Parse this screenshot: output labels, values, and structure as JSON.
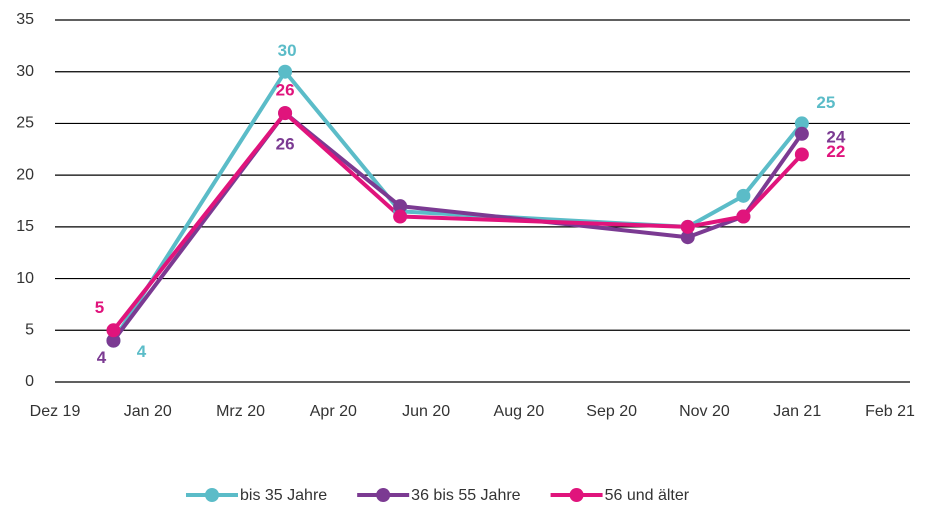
{
  "chart_data": {
    "type": "line",
    "x": [
      0.63,
      2.48,
      3.72,
      6.82,
      7.42,
      8.05
    ],
    "xlim": [
      0,
      9
    ],
    "xticks": [
      {
        "value": 0,
        "label": "Dez 19"
      },
      {
        "value": 1,
        "label": "Jan 20"
      },
      {
        "value": 2,
        "label": "Mrz 20"
      },
      {
        "value": 3,
        "label": "Apr 20"
      },
      {
        "value": 4,
        "label": "Jun 20"
      },
      {
        "value": 5,
        "label": "Aug 20"
      },
      {
        "value": 6,
        "label": "Sep 20"
      },
      {
        "value": 7,
        "label": "Nov 20"
      },
      {
        "value": 8,
        "label": "Jan 21"
      },
      {
        "value": 9,
        "label": "Feb 21"
      }
    ],
    "ylim": [
      0,
      35
    ],
    "yticks": [
      0,
      5,
      10,
      15,
      20,
      25,
      30,
      35
    ],
    "grid": true,
    "legend": "bottom",
    "series": [
      {
        "name": "bis 35 Jahre",
        "color": "#5bbcc8",
        "values": [
          4,
          30,
          16.5,
          15,
          18,
          25
        ],
        "value_labels": [
          "4",
          "30",
          null,
          null,
          null,
          "25"
        ]
      },
      {
        "name": "36 bis 55 Jahre",
        "color": "#7b3a92",
        "values": [
          4,
          26,
          17,
          14,
          16,
          24
        ],
        "value_labels": [
          "4",
          "26",
          null,
          null,
          null,
          "24"
        ]
      },
      {
        "name": "56 und älter",
        "color": "#e0147c",
        "values": [
          5,
          26,
          16,
          15,
          16,
          22
        ],
        "value_labels": [
          "5",
          "26",
          null,
          null,
          null,
          "22"
        ]
      }
    ]
  }
}
